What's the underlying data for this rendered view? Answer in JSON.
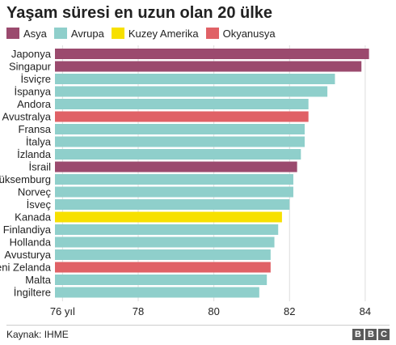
{
  "chart_data": {
    "type": "bar",
    "orientation": "horizontal",
    "title": "Yaşam süresi en uzun olan 20 ülke",
    "legend": [
      {
        "name": "Asya",
        "color": "#9b4a6e"
      },
      {
        "name": "Avrupa",
        "color": "#8fcfcb"
      },
      {
        "name": "Kuzey Amerika",
        "color": "#f7e000"
      },
      {
        "name": "Okyanusya",
        "color": "#e06166"
      }
    ],
    "legend_position": "top-left",
    "categories": [
      "Japonya",
      "Singapur",
      "İsviçre",
      "İspanya",
      "Andora",
      "Avustralya",
      "Fransa",
      "İtalya",
      "İzlanda",
      "İsrail",
      "Lüksemburg",
      "Norveç",
      "İsveç",
      "Kanada",
      "Finlandiya",
      "Hollanda",
      "Avusturya",
      "Yeni Zelanda",
      "Malta",
      "İngiltere"
    ],
    "values": [
      84.1,
      83.9,
      83.2,
      83.0,
      82.5,
      82.5,
      82.4,
      82.4,
      82.3,
      82.2,
      82.1,
      82.1,
      82.0,
      81.8,
      81.7,
      81.6,
      81.5,
      81.5,
      81.4,
      81.2
    ],
    "groups": [
      "Asya",
      "Asya",
      "Avrupa",
      "Avrupa",
      "Avrupa",
      "Okyanusya",
      "Avrupa",
      "Avrupa",
      "Avrupa",
      "Asya",
      "Avrupa",
      "Avrupa",
      "Avrupa",
      "Kuzey Amerika",
      "Avrupa",
      "Avrupa",
      "Avrupa",
      "Okyanusya",
      "Avrupa",
      "Avrupa"
    ],
    "xticks": [
      76,
      78,
      80,
      82,
      84
    ],
    "xtick_labels": [
      "76 yıl",
      "78",
      "80",
      "82",
      "84"
    ],
    "xlim": [
      75.8,
      84.6
    ],
    "grid": true
  },
  "footer": {
    "source": "Kaynak: IHME",
    "logo_letters": [
      "B",
      "B",
      "C"
    ]
  },
  "colors": {
    "grid": "#dddddd",
    "text": "#222222"
  }
}
